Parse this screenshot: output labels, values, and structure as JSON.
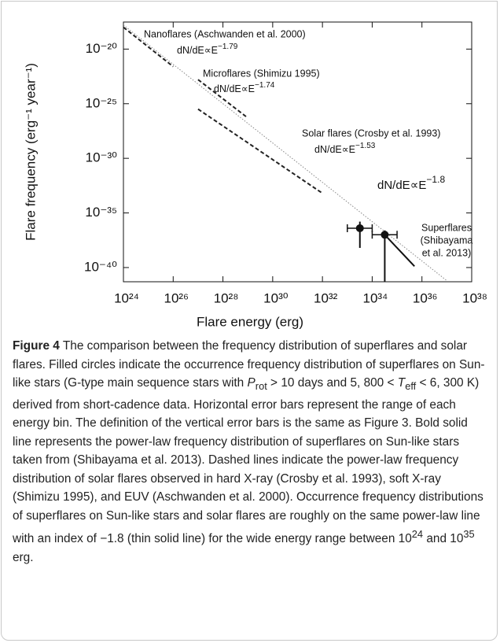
{
  "chart_data": {
    "type": "line",
    "xlabel": "Flare energy (erg)",
    "ylabel": "Flare frequency (erg⁻¹ year⁻¹)",
    "xscale": "log",
    "yscale": "log",
    "xlim": [
      1e+24,
      1e+38
    ],
    "ylim": [
      3e-18,
      5e-42
    ],
    "xticks": [
      {
        "value": 1e+24,
        "label": "10²⁴"
      },
      {
        "value": 1e+26,
        "label": "10²⁶"
      },
      {
        "value": 1e+28,
        "label": "10²⁸"
      },
      {
        "value": 1e+30,
        "label": "10³⁰"
      },
      {
        "value": 1e+32,
        "label": "10³²"
      },
      {
        "value": 1e+34,
        "label": "10³⁴"
      },
      {
        "value": 1e+36,
        "label": "10³⁶"
      },
      {
        "value": 1e+38,
        "label": "10³⁸"
      }
    ],
    "yticks": [
      {
        "value": 1e-20,
        "label": "10⁻²⁰"
      },
      {
        "value": 1e-25,
        "label": "10⁻²⁵"
      },
      {
        "value": 1e-30,
        "label": "10⁻³⁰"
      },
      {
        "value": 1e-35,
        "label": "10⁻³⁵"
      },
      {
        "value": 1e-40,
        "label": "10⁻⁴⁰"
      }
    ],
    "series": [
      {
        "color": "#888888",
        "style": "dotted",
        "width": 1,
        "x": [
          1e+24,
          1e+37
        ],
        "values": [
          1.6e-18,
          6.3e-42
        ]
      },
      {
        "color": "#222222",
        "style": "dashed",
        "width": 2,
        "x": [
          1e+24,
          1e+26
        ],
        "values": [
          1e-18,
          2.5e-22
        ]
      },
      {
        "color": "#222222",
        "style": "dashed",
        "width": 2,
        "x": [
          1e+27,
          1e+29
        ],
        "values": [
          1.6e-23,
          5e-27
        ]
      },
      {
        "color": "#222222",
        "style": "dashed",
        "width": 2,
        "x": [
          1e+27,
          1e+32
        ],
        "values": [
          3.2e-26,
          6.3e-34
        ]
      },
      {
        "color": "#111111",
        "style": "solid",
        "width": 2,
        "x": [
          3.2e+34,
          5e+35
        ],
        "values": [
          1e-37,
          1.3e-40
        ]
      },
      {
        "color": "#111111",
        "style": "points",
        "marker": "circle",
        "x": [
          3.2e+33,
          3.2e+34
        ],
        "values": [
          4e-37,
          1e-37
        ],
        "x_low": [
          1e+33,
          1e+34
        ],
        "x_high": [
          1e+34,
          1e+35
        ],
        "y_low": [
          6.3e-39,
          5e-42
        ],
        "y_high": [
          1.6e-36,
          2.5e-37
        ]
      }
    ],
    "annotations": [
      {
        "text": "Nanoflares (Aschwanden et al. 2000)"
      },
      {
        "text": "dN/dE∝E",
        "exponent": "−1.79"
      },
      {
        "text": "Microflares (Shimizu 1995)"
      },
      {
        "text": "dN/dE∝E",
        "exponent": "−1.74"
      },
      {
        "text": "Solar flares (Crosby et al. 1993)"
      },
      {
        "text": "dN/dE∝E",
        "exponent": "−1.53"
      },
      {
        "text": "dN/dE∝E",
        "exponent": "−1.8"
      },
      {
        "text": "Superflares"
      },
      {
        "text": "(Shibayama"
      },
      {
        "text": "et al. 2013)"
      }
    ]
  },
  "caption": {
    "label": "Figure 4",
    "runs": [
      " The comparison between the frequency distribution of superflares and solar flares. Filled circles indicate the occurrence frequency distribution of superflares on Sun-like stars (G-type main sequence stars with ",
      "P",
      "rot",
      " > 10 days and 5, 800 < ",
      "T",
      "eff",
      " < 6, 300 K) derived from short-cadence data. Horizontal error bars represent the range of each energy bin. The definition of the vertical error bars is the same as Figure 3. Bold solid line represents the power-law frequency distribution of superflares on Sun-like stars taken from (Shibayama et al. 2013). Dashed lines indicate the power-law frequency distribution of solar flares observed in hard X-ray (Crosby et al. 1993), soft X-ray (Shimizu 1995), and EUV (Aschwanden et al. 2000). Occurrence frequency distributions of superflares on Sun-like stars and solar flares are roughly on the same power-law line with an index of −1.8 (thin solid line) for the wide energy range between 10",
      "24",
      " and 10",
      "35",
      " erg."
    ]
  }
}
